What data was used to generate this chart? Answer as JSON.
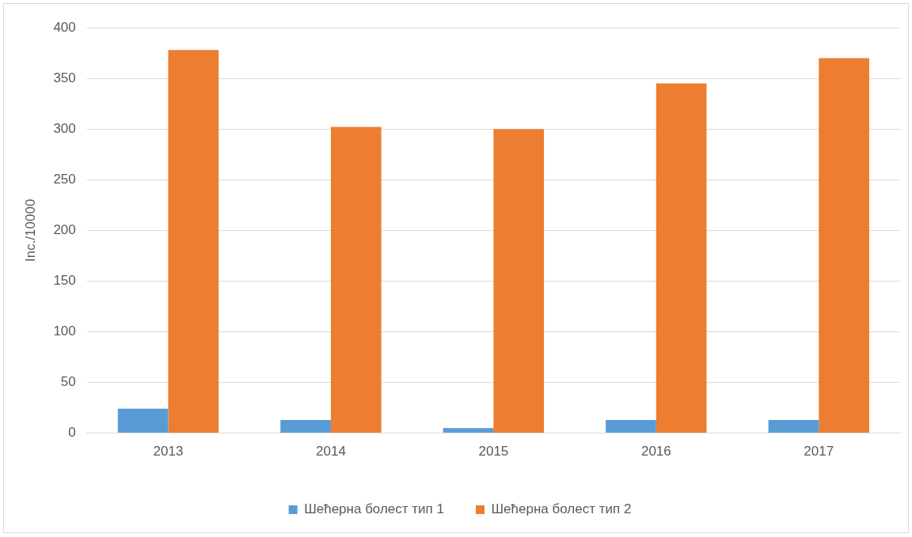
{
  "chart_data": {
    "type": "bar",
    "ylabel": "Inc./10000",
    "categories": [
      "2013",
      "2014",
      "2015",
      "2016",
      "2017"
    ],
    "series": [
      {
        "name": "Шећерна болест тип 1",
        "color": "#5b9bd5",
        "values": [
          24,
          13,
          5,
          13,
          13
        ]
      },
      {
        "name": "Шећерна болест тип 2",
        "color": "#ed7d31",
        "values": [
          378,
          302,
          300,
          345,
          370
        ]
      }
    ],
    "ylim": [
      0,
      400
    ],
    "yticks": [
      0,
      50,
      100,
      150,
      200,
      250,
      300,
      350,
      400
    ],
    "grid": "y",
    "legend": "bottom"
  }
}
